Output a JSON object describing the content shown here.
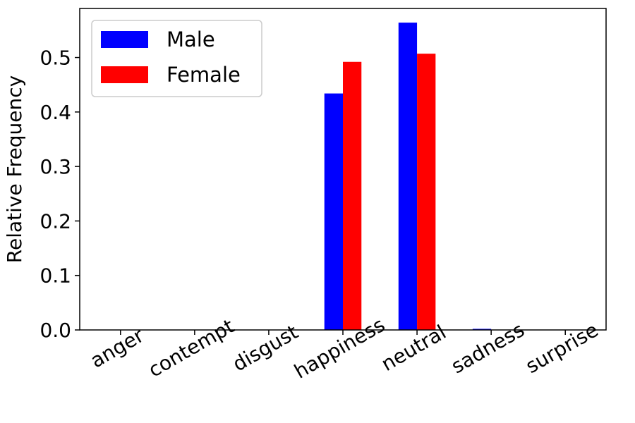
{
  "chart_data": {
    "type": "bar",
    "categories": [
      "anger",
      "contempt",
      "disgust",
      "happiness",
      "neutral",
      "sadness",
      "surprise"
    ],
    "series": [
      {
        "name": "Male",
        "color": "#0000ff",
        "values": [
          0.0,
          0.0,
          0.0,
          0.434,
          0.564,
          0.002,
          0.0
        ]
      },
      {
        "name": "Female",
        "color": "#ff0000",
        "values": [
          0.0,
          0.0,
          0.0,
          0.492,
          0.507,
          0.0,
          0.0
        ]
      }
    ],
    "ylabel": "Relative Frequency",
    "xlabel": "",
    "ylim": [
      0,
      0.59
    ],
    "yticks": [
      "0.0",
      "0.1",
      "0.2",
      "0.3",
      "0.4",
      "0.5"
    ],
    "legend_position": "top-left",
    "grid": false
  }
}
